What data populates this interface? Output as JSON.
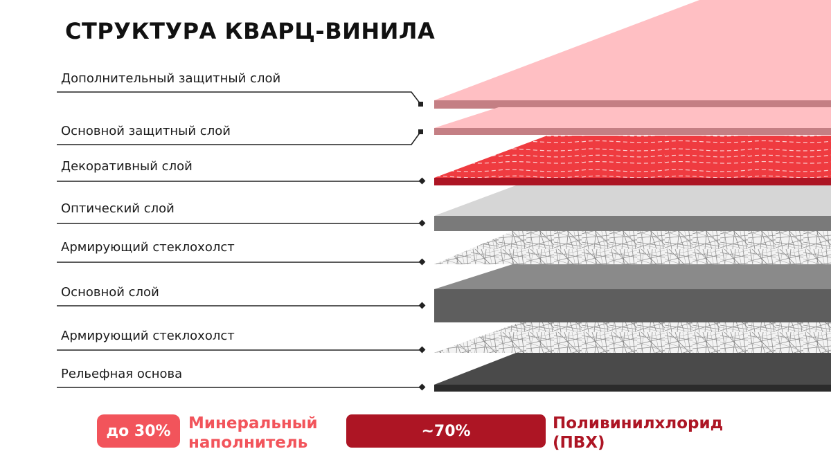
{
  "title": "СТРУКТУРА КВАРЦ-ВИНИЛА",
  "layers": [
    {
      "label": "Дополнительный защитный слой"
    },
    {
      "label": "Основной защитный слой"
    },
    {
      "label": "Декоративный слой"
    },
    {
      "label": "Оптический слой"
    },
    {
      "label": "Армирующий стеклохолст"
    },
    {
      "label": "Основной слой"
    },
    {
      "label": "Армирующий стеклохолст"
    },
    {
      "label": "Рельефная основа"
    }
  ],
  "legend": {
    "mineral": {
      "percent": "до 30%",
      "line1": "Минеральный",
      "line2": "наполнитель"
    },
    "pvc": {
      "percent": "~70%",
      "line1": "Поливинилхлорид",
      "line2": "(ПВХ)"
    }
  },
  "colors": {
    "light_pink": "#ffbfc3",
    "pink_edge": "#c47f84",
    "red": "#ef3b40",
    "dark_red": "#ad1524",
    "light_gray": "#d6d6d6",
    "gray": "#7a7a7a",
    "dark_gray": "#4a4a4a",
    "charcoal": "#2b2b2b"
  }
}
